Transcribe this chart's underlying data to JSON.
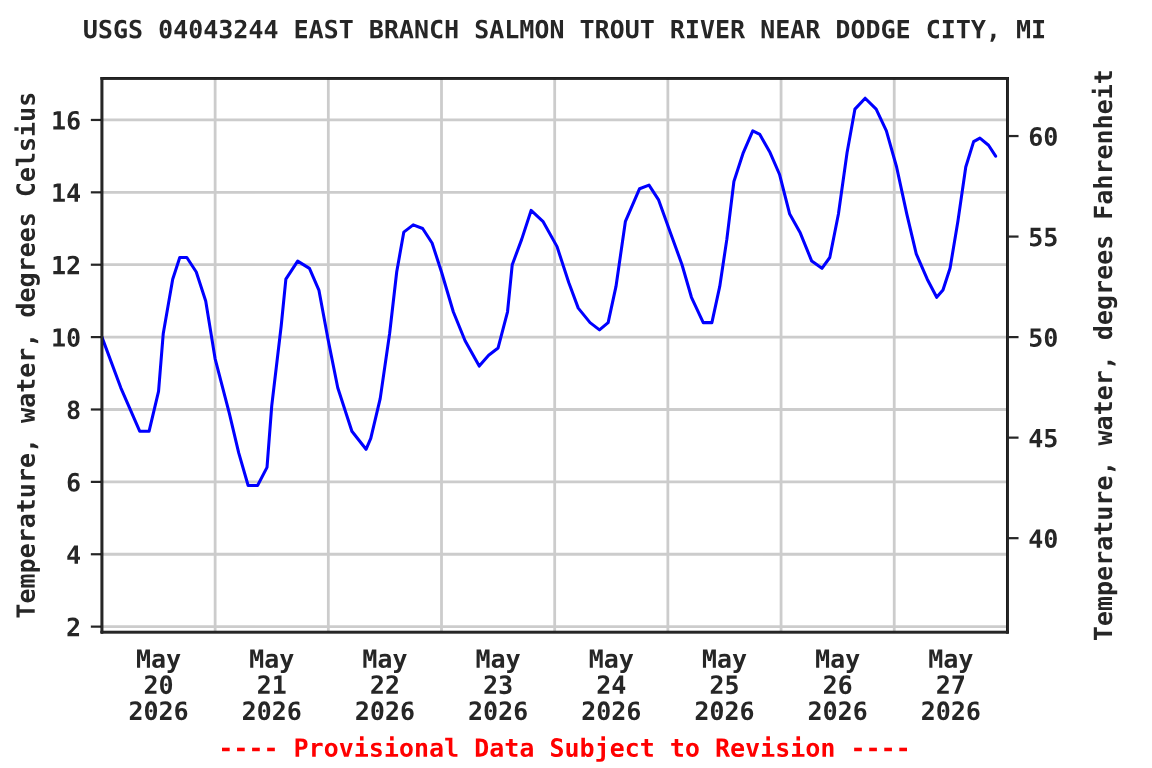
{
  "chart_data": {
    "type": "line",
    "title": "USGS 04043244 EAST BRANCH SALMON TROUT RIVER NEAR DODGE CITY, MI",
    "ylabel": "Temperature, water, degrees Celsius",
    "y2label": "Temperature, water, degrees Fahrenheit",
    "annotations": [
      "---- Provisional Data Subject to Revision ----"
    ],
    "x": [
      "2026-05-20T00:00",
      "2026-05-20T04:00",
      "2026-05-20T08:00",
      "2026-05-20T10:00",
      "2026-05-20T12:00",
      "2026-05-20T13:00",
      "2026-05-20T15:00",
      "2026-05-20T16:30",
      "2026-05-20T18:00",
      "2026-05-20T20:00",
      "2026-05-20T22:00",
      "2026-05-21T00:00",
      "2026-05-21T03:00",
      "2026-05-21T05:00",
      "2026-05-21T07:00",
      "2026-05-21T09:00",
      "2026-05-21T11:00",
      "2026-05-21T12:00",
      "2026-05-21T14:00",
      "2026-05-21T15:00",
      "2026-05-21T17:30",
      "2026-05-21T20:00",
      "2026-05-21T22:00",
      "2026-05-22T00:00",
      "2026-05-22T02:00",
      "2026-05-22T05:00",
      "2026-05-22T08:00",
      "2026-05-22T09:00",
      "2026-05-22T11:00",
      "2026-05-22T13:00",
      "2026-05-22T14:30",
      "2026-05-22T16:00",
      "2026-05-22T18:00",
      "2026-05-22T20:00",
      "2026-05-22T22:00",
      "2026-05-23T00:00",
      "2026-05-23T02:30",
      "2026-05-23T05:00",
      "2026-05-23T08:00",
      "2026-05-23T10:00",
      "2026-05-23T12:00",
      "2026-05-23T14:00",
      "2026-05-23T15:00",
      "2026-05-23T17:00",
      "2026-05-23T19:00",
      "2026-05-23T21:30",
      "2026-05-24T00:30",
      "2026-05-24T03:00",
      "2026-05-24T05:00",
      "2026-05-24T07:30",
      "2026-05-24T09:30",
      "2026-05-24T11:20",
      "2026-05-24T13:00",
      "2026-05-24T15:00",
      "2026-05-24T18:00",
      "2026-05-24T20:00",
      "2026-05-24T22:00",
      "2026-05-25T00:30",
      "2026-05-25T03:00",
      "2026-05-25T05:00",
      "2026-05-25T07:30",
      "2026-05-25T09:20",
      "2026-05-25T11:00",
      "2026-05-25T12:30",
      "2026-05-25T14:00",
      "2026-05-25T16:00",
      "2026-05-25T18:00",
      "2026-05-25T19:30",
      "2026-05-25T21:40",
      "2026-05-25T23:40",
      "2026-05-26T01:50",
      "2026-05-26T04:00",
      "2026-05-26T06:30",
      "2026-05-26T08:40",
      "2026-05-26T10:20",
      "2026-05-26T12:10",
      "2026-05-26T14:00",
      "2026-05-26T15:40",
      "2026-05-26T17:50",
      "2026-05-26T20:10",
      "2026-05-26T22:20",
      "2026-05-27T00:30",
      "2026-05-27T02:40",
      "2026-05-27T04:40",
      "2026-05-27T07:00",
      "2026-05-27T09:00",
      "2026-05-27T10:20",
      "2026-05-27T11:50",
      "2026-05-27T13:30",
      "2026-05-27T15:10",
      "2026-05-27T16:50",
      "2026-05-27T18:10",
      "2026-05-27T20:00",
      "2026-05-27T21:30"
    ],
    "series": [
      {
        "color": "#0000ff",
        "values": [
          10.0,
          8.6,
          7.4,
          7.4,
          8.5,
          10.1,
          11.6,
          12.2,
          12.2,
          11.8,
          11.0,
          9.4,
          7.9,
          6.8,
          5.9,
          5.9,
          6.4,
          8.1,
          10.3,
          11.6,
          12.1,
          11.9,
          11.3,
          9.9,
          8.6,
          7.4,
          6.9,
          7.2,
          8.3,
          10.1,
          11.8,
          12.9,
          13.1,
          13.0,
          12.6,
          11.8,
          10.7,
          9.9,
          9.2,
          9.5,
          9.7,
          10.7,
          12.0,
          12.7,
          13.5,
          13.2,
          12.5,
          11.5,
          10.8,
          10.4,
          10.2,
          10.4,
          11.4,
          13.2,
          14.1,
          14.2,
          13.8,
          12.9,
          12.0,
          11.1,
          10.4,
          10.4,
          11.4,
          12.7,
          14.3,
          15.1,
          15.7,
          15.6,
          15.1,
          14.5,
          13.4,
          12.9,
          12.1,
          11.9,
          12.2,
          13.4,
          15.1,
          16.3,
          16.6,
          16.3,
          15.7,
          14.7,
          13.4,
          12.3,
          11.6,
          11.1,
          11.3,
          11.9,
          13.2,
          14.7,
          15.4,
          15.5,
          15.3,
          15.0
        ]
      }
    ],
    "xlim": [
      "2026-05-20T00:00",
      "2026-05-28T00:00"
    ],
    "xticks": [
      {
        "value": "2026-05-20T12:00",
        "label": "May\n20\n2026"
      },
      {
        "value": "2026-05-21T12:00",
        "label": "May\n21\n2026"
      },
      {
        "value": "2026-05-22T12:00",
        "label": "May\n22\n2026"
      },
      {
        "value": "2026-05-23T12:00",
        "label": "May\n23\n2026"
      },
      {
        "value": "2026-05-24T12:00",
        "label": "May\n24\n2026"
      },
      {
        "value": "2026-05-25T12:00",
        "label": "May\n25\n2026"
      },
      {
        "value": "2026-05-26T12:00",
        "label": "May\n26\n2026"
      },
      {
        "value": "2026-05-27T12:00",
        "label": "May\n27\n2026"
      },
      {
        "value": "2026-05-21T00:00",
        "label": null
      },
      {
        "value": "2026-05-22T00:00",
        "label": null
      },
      {
        "value": "2026-05-23T00:00",
        "label": null
      },
      {
        "value": "2026-05-24T00:00",
        "label": null
      },
      {
        "value": "2026-05-25T00:00",
        "label": null
      },
      {
        "value": "2026-05-26T00:00",
        "label": null
      },
      {
        "value": "2026-05-27T00:00",
        "label": null
      }
    ],
    "ylim": [
      1.85,
      17.15
    ],
    "yticks": [
      2,
      4,
      6,
      8,
      10,
      12,
      14,
      16
    ],
    "y2lim": [
      35.33,
      62.87
    ],
    "y2ticks": [
      40,
      45,
      50,
      55,
      60
    ],
    "grid": true,
    "marker": "none",
    "line_style": "solid"
  }
}
